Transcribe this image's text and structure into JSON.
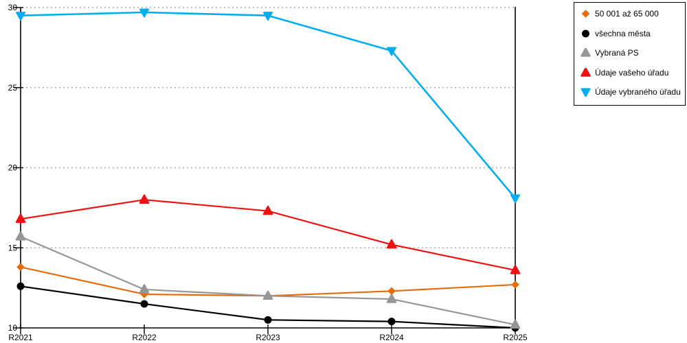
{
  "chart_data": {
    "type": "line",
    "categories": [
      "R2021",
      "R2022",
      "R2023",
      "R2024",
      "R2025"
    ],
    "series": [
      {
        "name": "50 001 až 65 000",
        "color": "#E46C0A",
        "marker": "diamond",
        "values": [
          13.8,
          12.1,
          12.0,
          12.3,
          12.7
        ]
      },
      {
        "name": "všechna města",
        "color": "#000000",
        "marker": "circle",
        "values": [
          12.6,
          11.5,
          10.5,
          10.4,
          10.0
        ]
      },
      {
        "name": "Vybraná PS",
        "color": "#969696",
        "marker": "triangle-up",
        "values": [
          15.7,
          12.4,
          12.0,
          11.8,
          10.2
        ]
      },
      {
        "name": "Údaje vašeho úřadu",
        "color": "#EE1111",
        "marker": "triangle-up",
        "values": [
          16.8,
          18.0,
          17.3,
          15.2,
          13.6
        ]
      },
      {
        "name": "Údaje vybraného úřadu",
        "color": "#00AEEF",
        "marker": "triangle-down",
        "values": [
          29.5,
          29.7,
          29.5,
          27.3,
          18.1
        ]
      }
    ],
    "title": "",
    "xlabel": "",
    "ylabel": "",
    "ylim": [
      10,
      30
    ],
    "y_ticks": [
      10,
      15,
      20,
      25,
      30
    ],
    "grid": "horizontal-dotted",
    "legend_position": "top-right"
  },
  "colors": {
    "background": "#ffffff",
    "axis": "#000000",
    "gridline": "#ababab",
    "text": "#000000"
  }
}
